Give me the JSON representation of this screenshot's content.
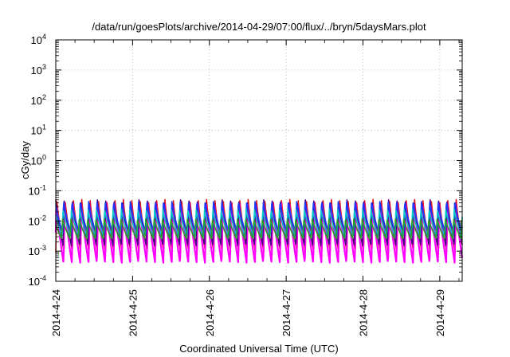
{
  "chart_data": {
    "type": "line",
    "title": "/data/run/goesPlots/archive/2014-04-29/07:00/flux/../bryn/5daysMars.plot",
    "xlabel": "Coordinated Universal Time (UTC)",
    "ylabel": "cGy/day",
    "yscale": "log",
    "ylim": [
      0.0001,
      10000
    ],
    "xlim": [
      "2014-04-24 00:00",
      "2014-04-29 07:00"
    ],
    "grid": true,
    "y_ticks": [
      {
        "base": "10",
        "exp": "-4",
        "value": 0.0001
      },
      {
        "base": "10",
        "exp": "-3",
        "value": 0.001
      },
      {
        "base": "10",
        "exp": "-2",
        "value": 0.01
      },
      {
        "base": "10",
        "exp": "-1",
        "value": 0.1
      },
      {
        "base": "10",
        "exp": "0",
        "value": 1
      },
      {
        "base": "10",
        "exp": "1",
        "value": 10
      },
      {
        "base": "10",
        "exp": "2",
        "value": 100
      },
      {
        "base": "10",
        "exp": "3",
        "value": 1000
      },
      {
        "base": "10",
        "exp": "4",
        "value": 10000
      }
    ],
    "x_ticks": [
      "2014-4-24",
      "2014-4-25",
      "2014-4-26",
      "2014-4-27",
      "2014-4-28",
      "2014-4-29"
    ],
    "cycle_period_hours": 2.6,
    "series": [
      {
        "color": "#e41a1c",
        "peak": 0.055,
        "trough": 0.0009
      },
      {
        "color": "#ff00ff",
        "peak": 0.042,
        "trough": 0.0004
      },
      {
        "color": "#4b0082",
        "peak": 0.05,
        "trough": 0.0015
      },
      {
        "color": "#1e3cff",
        "peak": 0.045,
        "trough": 0.004
      },
      {
        "color": "#00c8c8",
        "peak": 0.025,
        "trough": 0.003
      },
      {
        "color": "#2aa02a",
        "peak": 0.012,
        "trough": 0.0025
      }
    ]
  }
}
